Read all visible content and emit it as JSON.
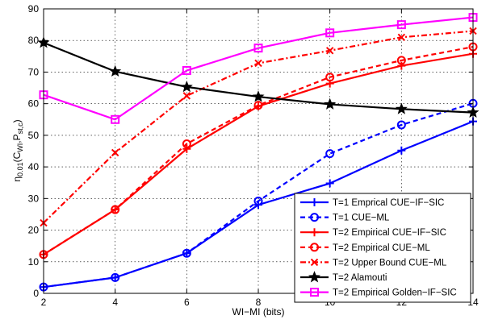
{
  "chart_data": {
    "type": "line",
    "title": "",
    "xlabel": "WI−MI (bits)",
    "ylabel_parts": {
      "main": "η",
      "sub": "0.01",
      "open": "(C",
      "wi": "WI",
      "comma": ",P",
      "st": "st,c",
      "close": ")"
    },
    "xlim": [
      2,
      14
    ],
    "ylim": [
      0,
      90
    ],
    "xticks": [
      "2",
      "4",
      "6",
      "8",
      "10",
      "12",
      "14"
    ],
    "yticks": [
      "0",
      "10",
      "20",
      "30",
      "40",
      "50",
      "60",
      "70",
      "80",
      "90"
    ],
    "grid": true,
    "legend_position": "bottom-right",
    "x": [
      2,
      4,
      6,
      8,
      10,
      12,
      14
    ],
    "series": [
      {
        "name": "T=1 Emprical CUE−IF−SIC",
        "color": "#0000ff",
        "dash": "solid",
        "marker": "plus",
        "values": [
          2.0,
          5.0,
          12.7,
          28.0,
          34.8,
          45.2,
          54.4
        ]
      },
      {
        "name": "T=1 CUE−ML",
        "color": "#0000ff",
        "dash": "dashed",
        "marker": "circle",
        "values": [
          2.0,
          5.0,
          12.7,
          29.2,
          44.2,
          53.3,
          60.1
        ]
      },
      {
        "name": "T=2 Empirical CUE−IF−SIC",
        "color": "#ff0000",
        "dash": "solid",
        "marker": "plus",
        "values": [
          12.3,
          26.5,
          45.7,
          59.2,
          66.4,
          72.0,
          75.8
        ]
      },
      {
        "name": "T=2 Empirical CUE−ML",
        "color": "#ff0000",
        "dash": "dashed",
        "marker": "circle",
        "values": [
          12.3,
          26.5,
          47.3,
          59.5,
          68.4,
          73.7,
          78.0
        ]
      },
      {
        "name": "T=2 Upper Bound CUE−ML",
        "color": "#ff0000",
        "dash": "dashdot",
        "marker": "x",
        "values": [
          22.3,
          44.5,
          62.5,
          72.8,
          76.8,
          81.0,
          83.0
        ]
      },
      {
        "name": "T=2 Alamouti",
        "color": "#000000",
        "dash": "solid",
        "marker": "star",
        "values": [
          79.3,
          70.2,
          65.3,
          62.2,
          59.8,
          58.3,
          57.2
        ]
      },
      {
        "name": "T=2 Empirical Golden−IF−SIC",
        "color": "#ff00ff",
        "dash": "solid",
        "marker": "square",
        "values": [
          62.8,
          55.0,
          70.5,
          77.6,
          82.4,
          85.0,
          87.3
        ]
      }
    ]
  }
}
